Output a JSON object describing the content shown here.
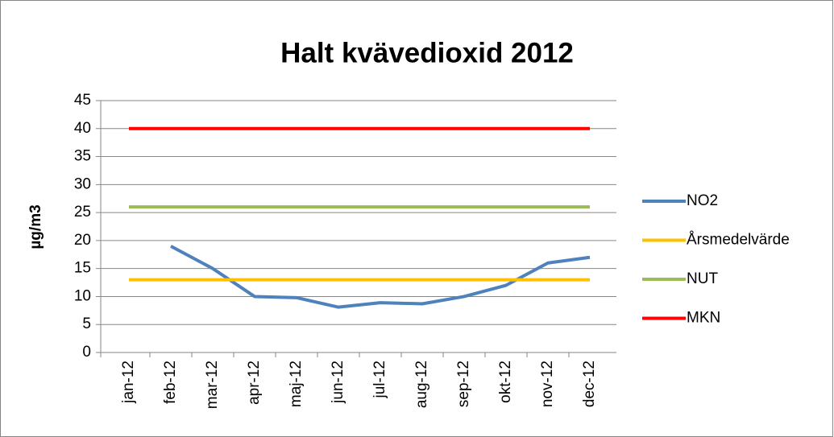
{
  "chart_data": {
    "type": "line",
    "title": "Halt kvävedioxid 2012",
    "y_label": "µg/m3",
    "categories": [
      "jan-12",
      "feb-12",
      "mar-12",
      "apr-12",
      "maj-12",
      "jun-12",
      "jul-12",
      "aug-12",
      "sep-12",
      "okt-12",
      "nov-12",
      "dec-12"
    ],
    "series": [
      {
        "name": "NO2",
        "color": "#4f81bd",
        "values": [
          null,
          19,
          15,
          10,
          9.8,
          8.1,
          8.9,
          8.7,
          10,
          12,
          16,
          17
        ]
      },
      {
        "name": "Årsmedelvärde",
        "color": "#ffc000",
        "values": [
          13,
          13,
          13,
          13,
          13,
          13,
          13,
          13,
          13,
          13,
          13,
          13
        ]
      },
      {
        "name": "NUT",
        "color": "#9bbb59",
        "values": [
          26,
          26,
          26,
          26,
          26,
          26,
          26,
          26,
          26,
          26,
          26,
          26
        ]
      },
      {
        "name": "MKN",
        "color": "#ff0000",
        "values": [
          40,
          40,
          40,
          40,
          40,
          40,
          40,
          40,
          40,
          40,
          40,
          40
        ]
      }
    ],
    "ylim": [
      0,
      45
    ],
    "yticks": [
      0,
      5,
      10,
      15,
      20,
      25,
      30,
      35,
      40,
      45
    ],
    "grid": true,
    "legend": "right"
  }
}
